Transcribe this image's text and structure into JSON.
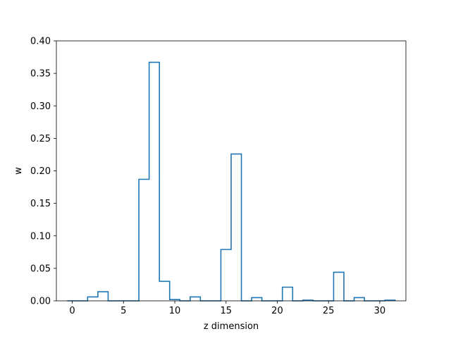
{
  "chart_data": {
    "type": "step-histogram",
    "xlabel": "z dimension",
    "ylabel": "w",
    "xlim": [
      -1.55,
      32.55
    ],
    "ylim": [
      0,
      0.4
    ],
    "xticks": [
      0,
      5,
      10,
      15,
      20,
      25,
      30
    ],
    "yticks": [
      0.0,
      0.05,
      0.1,
      0.15,
      0.2,
      0.25,
      0.3,
      0.35,
      0.4
    ],
    "ytick_labels": [
      "0.00",
      "0.05",
      "0.10",
      "0.15",
      "0.20",
      "0.25",
      "0.30",
      "0.35",
      "0.40"
    ],
    "x": [
      0,
      1,
      2,
      3,
      4,
      5,
      6,
      7,
      8,
      9,
      10,
      11,
      12,
      13,
      14,
      15,
      16,
      17,
      18,
      19,
      20,
      21,
      22,
      23,
      24,
      25,
      26,
      27,
      28,
      29,
      30,
      31
    ],
    "values": [
      0.0,
      0.0,
      0.006,
      0.014,
      0.0,
      0.0,
      0.0,
      0.187,
      0.367,
      0.03,
      0.002,
      0.0,
      0.006,
      0.0,
      0.0,
      0.079,
      0.226,
      0.0,
      0.005,
      0.0,
      0.0,
      0.021,
      0.0,
      0.001,
      0.0,
      0.0,
      0.044,
      0.0,
      0.005,
      0.0,
      0.0,
      0.001
    ],
    "line_color": "#1f77b4",
    "grid": false
  }
}
